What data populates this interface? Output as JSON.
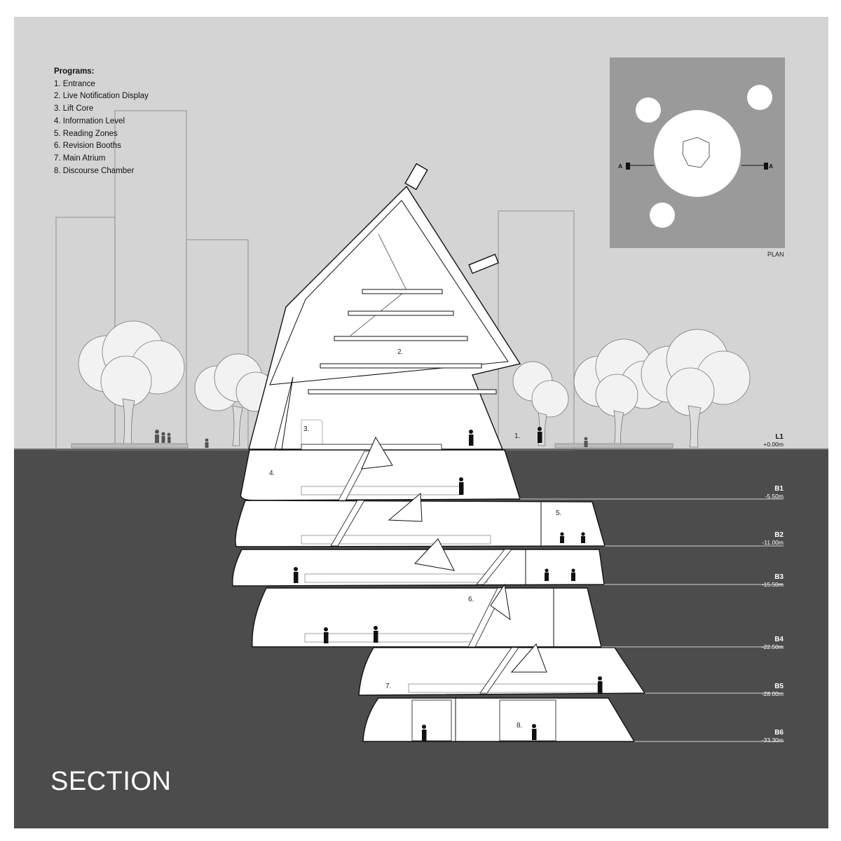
{
  "legend": {
    "heading": "Programs:",
    "items": [
      "1. Entrance",
      "2. Live Notification Display",
      "3. Lift Core",
      "4. Information Level",
      "5. Reading Zones",
      "6. Revision Booths",
      "7. Main Atrium",
      "8. Discourse Chamber"
    ]
  },
  "title": "SECTION",
  "plan": {
    "caption": "PLAN",
    "section_mark": "A"
  },
  "program_numbers": [
    "1.",
    "2.",
    "3.",
    "4.",
    "5.",
    "6.",
    "7.",
    "8."
  ],
  "levels": [
    {
      "name": "L1",
      "elevation": "+0.00m"
    },
    {
      "name": "B1",
      "elevation": "-5.50m"
    },
    {
      "name": "B2",
      "elevation": "-11.00m"
    },
    {
      "name": "B3",
      "elevation": "-15.50m"
    },
    {
      "name": "B4",
      "elevation": "-22.50m"
    },
    {
      "name": "B5",
      "elevation": "-28.00m"
    },
    {
      "name": "B6",
      "elevation": "-33.30m"
    }
  ],
  "colors": {
    "sky": "#d4d4d4",
    "ground": "#4c4c4c",
    "plan_bg": "#9a9a9a",
    "interior": "#ffffff",
    "ink": "#111111"
  }
}
